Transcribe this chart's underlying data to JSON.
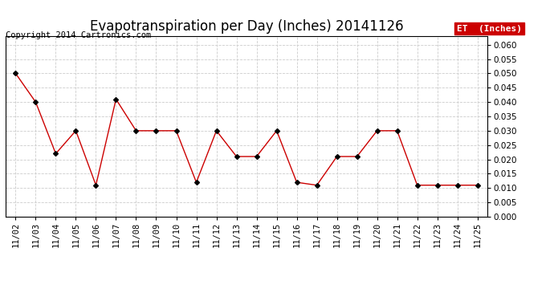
{
  "title": "Evapotranspiration per Day (Inches) 20141126",
  "copyright_text": "Copyright 2014 Cartronics.com",
  "legend_label": "ET  (Inches)",
  "legend_bg": "#cc0000",
  "legend_text_color": "#ffffff",
  "dates": [
    "11/02",
    "11/03",
    "11/04",
    "11/05",
    "11/06",
    "11/07",
    "11/08",
    "11/09",
    "11/10",
    "11/11",
    "11/12",
    "11/13",
    "11/14",
    "11/15",
    "11/16",
    "11/17",
    "11/18",
    "11/19",
    "11/20",
    "11/21",
    "11/22",
    "11/23",
    "11/24",
    "11/25"
  ],
  "values": [
    0.05,
    0.04,
    0.022,
    0.03,
    0.011,
    0.041,
    0.03,
    0.03,
    0.03,
    0.012,
    0.03,
    0.021,
    0.021,
    0.03,
    0.012,
    0.011,
    0.021,
    0.021,
    0.03,
    0.03,
    0.011,
    0.011,
    0.011,
    0.011
  ],
  "line_color": "#cc0000",
  "marker": "D",
  "marker_size": 3,
  "marker_color": "#000000",
  "ylim": [
    0.0,
    0.063
  ],
  "yticks": [
    0.0,
    0.005,
    0.01,
    0.015,
    0.02,
    0.025,
    0.03,
    0.035,
    0.04,
    0.045,
    0.05,
    0.055,
    0.06
  ],
  "grid_color": "#cccccc",
  "grid_style": "--",
  "bg_color": "#ffffff",
  "title_fontsize": 12,
  "tick_fontsize": 7.5,
  "copyright_fontsize": 7.5
}
